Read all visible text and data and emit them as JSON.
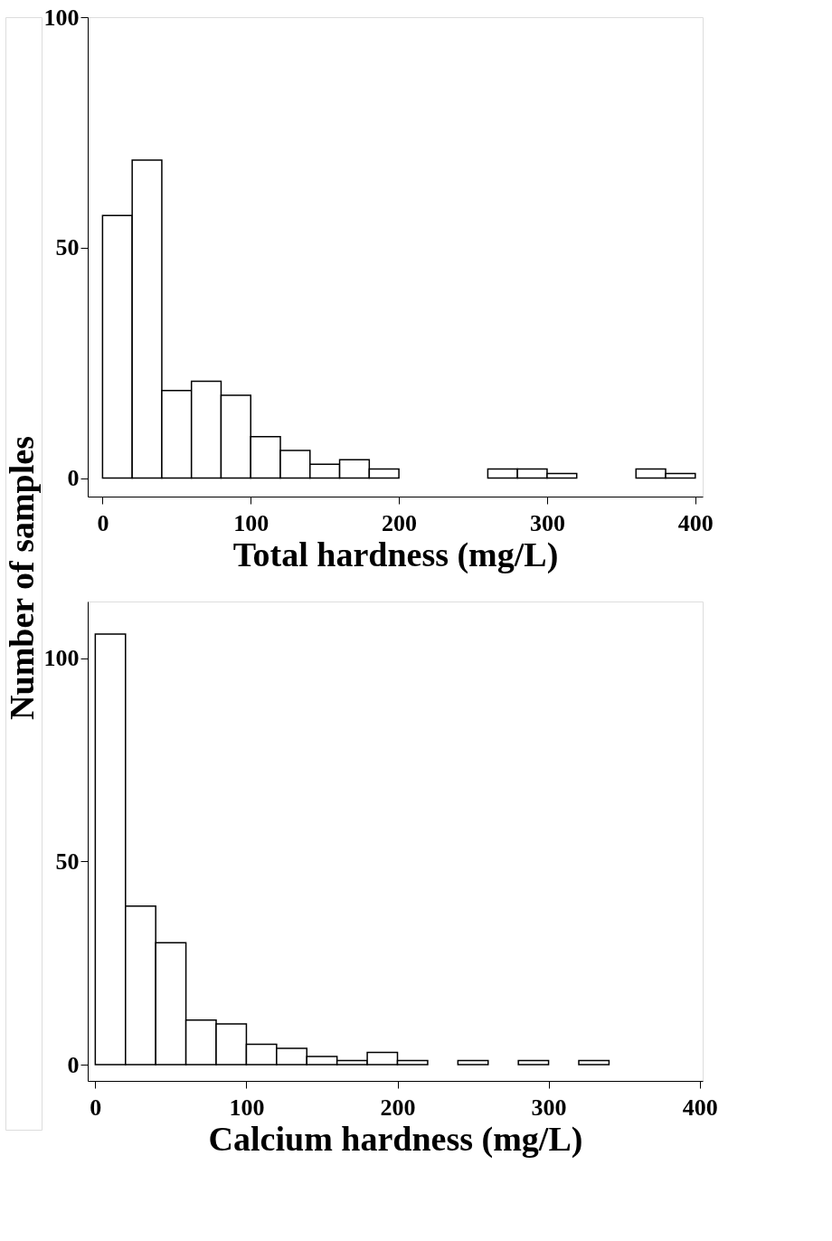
{
  "chart_data": [
    {
      "type": "histogram",
      "xlabel": "Total hardness (mg/L)",
      "ylabel": "Number of samples",
      "bins": [
        0,
        20,
        40,
        60,
        80,
        100,
        120,
        140,
        160,
        180,
        200,
        220,
        240,
        260,
        280,
        300,
        320,
        340,
        360,
        380,
        400
      ],
      "values": [
        57,
        69,
        19,
        21,
        18,
        9,
        6,
        3,
        4,
        2,
        0,
        0,
        0,
        2,
        2,
        1,
        0,
        0,
        2,
        1
      ],
      "color": "#ffffff",
      "xlim": [
        -10,
        405
      ],
      "ylim": [
        -4,
        100
      ],
      "xticks": [
        0,
        100,
        200,
        300,
        400
      ],
      "yticks": [
        0,
        50,
        100
      ],
      "grid": false
    },
    {
      "type": "histogram",
      "xlabel": "Calcium hardness (mg/L)",
      "bins": [
        0,
        20,
        40,
        60,
        80,
        100,
        120,
        140,
        160,
        180,
        200,
        220,
        240,
        260,
        280,
        300,
        320,
        340
      ],
      "values": [
        106,
        39,
        30,
        11,
        10,
        5,
        4,
        2,
        1,
        3,
        1,
        0,
        1,
        0,
        1,
        0,
        1
      ],
      "color": "#ffffff",
      "xlim": [
        -5,
        402
      ],
      "ylim": [
        -4,
        114
      ],
      "xticks": [
        0,
        100,
        200,
        300,
        400
      ],
      "yticks": [
        0,
        50,
        100
      ],
      "grid": false
    }
  ]
}
